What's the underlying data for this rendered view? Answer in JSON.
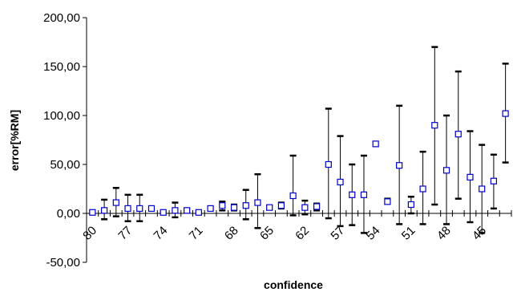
{
  "chart_data": {
    "type": "scatter",
    "xlabel": "confidence",
    "ylabel": "error[%RM]",
    "ylim": [
      -50,
      200
    ],
    "y_ticks": [
      "-50,00",
      "0,00",
      "50,00",
      "100,00",
      "150,00",
      "200,00"
    ],
    "y_tick_values": [
      -50,
      0,
      50,
      100,
      150,
      200
    ],
    "x_tick_labels": [
      "80",
      "77",
      "74",
      "71",
      "68",
      "65",
      "62",
      "57",
      "54",
      "51",
      "48",
      "45"
    ],
    "grid": false,
    "marker": "hollow-square",
    "marker_color": "#0000cc",
    "errorbar_color": "#000000",
    "points": [
      {
        "y": 1,
        "low": 0,
        "high": 3
      },
      {
        "y": 3,
        "low": -6,
        "high": 14
      },
      {
        "y": 11,
        "low": -3,
        "high": 26
      },
      {
        "y": 5,
        "low": -8,
        "high": 19
      },
      {
        "y": 5,
        "low": -8,
        "high": 19
      },
      {
        "y": 5,
        "low": 3,
        "high": 7
      },
      {
        "y": 1,
        "low": 0,
        "high": 2
      },
      {
        "y": 3,
        "low": -4,
        "high": 11
      },
      {
        "y": 3,
        "low": 1,
        "high": 5
      },
      {
        "y": 1,
        "low": 0,
        "high": 2
      },
      {
        "y": 5,
        "low": 3,
        "high": 7
      },
      {
        "y": 8,
        "low": 3,
        "high": 12
      },
      {
        "y": 6,
        "low": 3,
        "high": 9
      },
      {
        "y": 8,
        "low": -6,
        "high": 24
      },
      {
        "y": 11,
        "low": -15,
        "high": 40
      },
      {
        "y": 6,
        "low": 4,
        "high": 8
      },
      {
        "y": 8,
        "low": 5,
        "high": 11
      },
      {
        "y": 18,
        "low": -2,
        "high": 59
      },
      {
        "y": 6,
        "low": -1,
        "high": 13
      },
      {
        "y": 7,
        "low": 3,
        "high": 10
      },
      {
        "y": 50,
        "low": -5,
        "high": 107
      },
      {
        "y": 32,
        "low": -13,
        "high": 79
      },
      {
        "y": 19,
        "low": -12,
        "high": 50
      },
      {
        "y": 19,
        "low": -20,
        "high": 59
      },
      {
        "y": 71,
        "low": 71,
        "high": 71
      },
      {
        "y": 12,
        "low": 10,
        "high": 15
      },
      {
        "y": 49,
        "low": -11,
        "high": 110
      },
      {
        "y": 9,
        "low": 0,
        "high": 17
      },
      {
        "y": 25,
        "low": -11,
        "high": 63
      },
      {
        "y": 90,
        "low": 9,
        "high": 170
      },
      {
        "y": 44,
        "low": -11,
        "high": 100
      },
      {
        "y": 81,
        "low": 15,
        "high": 145
      },
      {
        "y": 37,
        "low": -9,
        "high": 84
      },
      {
        "y": 25,
        "low": -20,
        "high": 70
      },
      {
        "y": 33,
        "low": 5,
        "high": 60
      },
      {
        "y": 102,
        "low": 52,
        "high": 153
      }
    ]
  }
}
